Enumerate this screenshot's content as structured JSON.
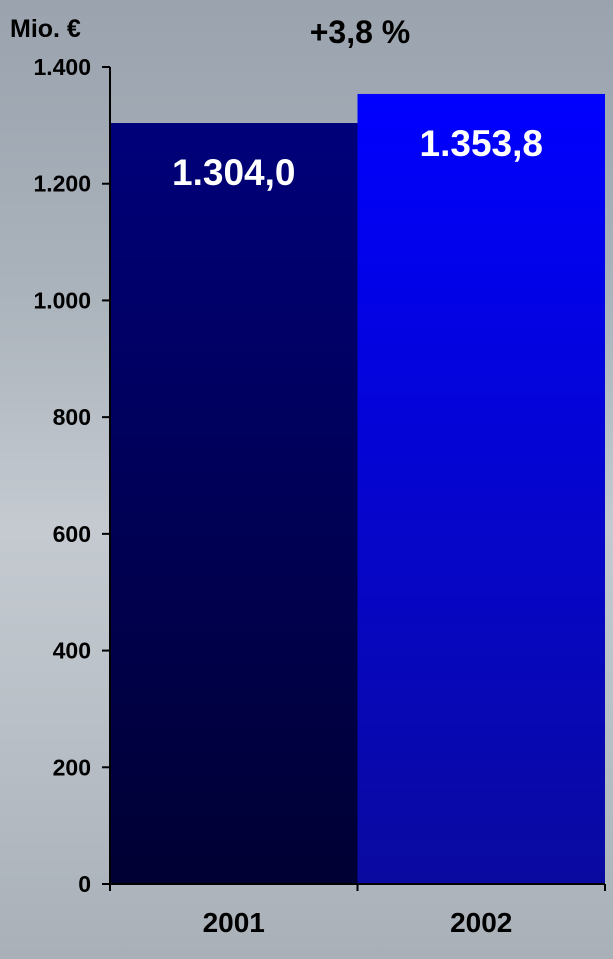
{
  "chart_data": {
    "type": "bar",
    "unit_label": "Mio. €",
    "change_label": "+3,8 %",
    "categories": [
      "2001",
      "2002"
    ],
    "values": [
      1304.0,
      1353.8
    ],
    "value_labels": [
      "1.304,0",
      "1.353,8"
    ],
    "bar_colors": [
      {
        "top": "#00007a",
        "bottom": "#000033"
      },
      {
        "top": "#0000ff",
        "bottom": "#0a0aa0"
      }
    ],
    "ylim": [
      0,
      1400
    ],
    "yticks": [
      0,
      200,
      400,
      600,
      800,
      1000,
      1200,
      1400
    ],
    "ytick_labels": [
      "0",
      "200",
      "400",
      "600",
      "800",
      "1.000",
      "1.200",
      "1.400"
    ],
    "grid": false,
    "legend": "none",
    "text_colors": {
      "axis": "#000000",
      "value": "#ffffff"
    }
  }
}
